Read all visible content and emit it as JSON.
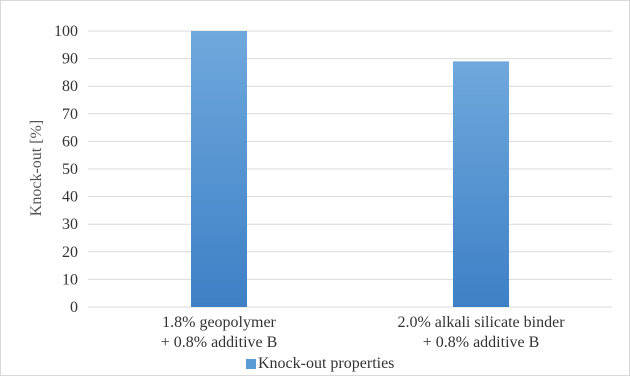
{
  "chart_data": {
    "type": "bar",
    "categories": [
      [
        "1.8% geopolymer",
        "+ 0.8% additive B"
      ],
      [
        "2.0% alkali silicate binder",
        "+ 0.8% additive B"
      ]
    ],
    "series": [
      {
        "name": "Knock-out properties",
        "values": [
          100,
          89
        ],
        "color": "#5b9bd5"
      }
    ],
    "title": "",
    "xlabel": "",
    "ylabel": "Knock-out [%]",
    "ylim": [
      0,
      100
    ],
    "yticks": [
      0,
      10,
      20,
      30,
      40,
      50,
      60,
      70,
      80,
      90,
      100
    ],
    "grid": true,
    "gridColor": "#d9d9d9",
    "legend": "bottom"
  }
}
